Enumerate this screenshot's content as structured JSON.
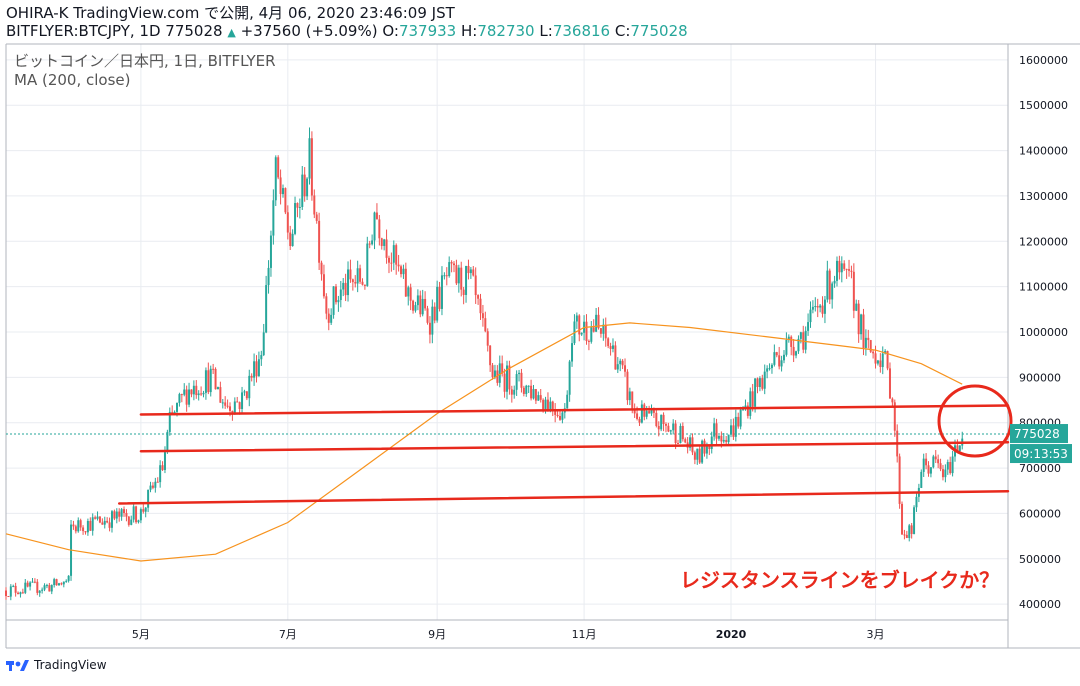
{
  "header": {
    "line1": "OHIRA-K TradingView.com で公開, 4月 06, 2020 23:46:09 JST",
    "symbol": "BITFLYER:BTCJPY, 1D 775028",
    "change_arrow": "▲",
    "change": "+37560 (+5.09%)",
    "o_label": "O:",
    "o_value": "737933",
    "h_label": "H:",
    "h_value": "782730",
    "l_label": "L:",
    "l_value": "736816",
    "c_label": "C:",
    "c_value": "775028"
  },
  "legend": {
    "title": "ビットコイン／日本円, 1日, BITFLYER",
    "indicator": "MA (200, close)"
  },
  "price_badge": "775028",
  "countdown_badge": "09:13:53",
  "annotation": "レジスタンスラインをブレイクか？",
  "footer": {
    "brand": "TradingView"
  },
  "colors": {
    "up": "#26a69a",
    "down": "#ef5350",
    "ma": "#f7931e",
    "trendline": "#e8291c",
    "grid": "#e9ecf1"
  },
  "chart_data": {
    "type": "candlestick",
    "title": "ビットコイン／日本円, 1日, BITFLYER",
    "y_ticks": [
      400000,
      500000,
      600000,
      700000,
      800000,
      900000,
      1000000,
      1100000,
      1200000,
      1300000,
      1400000,
      1500000,
      1600000
    ],
    "ylim": [
      365000,
      1635000
    ],
    "x_ticks": [
      "5月",
      "7月",
      "9月",
      "11月",
      "2020",
      "3月"
    ],
    "x_tick_dates": [
      "2019-05-01",
      "2019-07-01",
      "2019-09-01",
      "2019-11-01",
      "2020-01-01",
      "2020-03-01"
    ],
    "xlim": [
      "2019-03-06",
      "2020-04-25"
    ],
    "close_path": [
      [
        "2019-03-06",
        430000
      ],
      [
        "2019-03-25",
        440000
      ],
      [
        "2019-04-01",
        450000
      ],
      [
        "2019-04-02",
        570000
      ],
      [
        "2019-04-20",
        590000
      ],
      [
        "2019-05-01",
        600000
      ],
      [
        "2019-05-10",
        700000
      ],
      [
        "2019-05-13",
        800000
      ],
      [
        "2019-05-20",
        870000
      ],
      [
        "2019-05-30",
        900000
      ],
      [
        "2019-06-05",
        840000
      ],
      [
        "2019-06-12",
        850000
      ],
      [
        "2019-06-20",
        960000
      ],
      [
        "2019-06-26",
        1350000
      ],
      [
        "2019-07-02",
        1200000
      ],
      [
        "2019-07-10",
        1380000
      ],
      [
        "2019-07-17",
        1050000
      ],
      [
        "2019-07-25",
        1100000
      ],
      [
        "2019-08-02",
        1120000
      ],
      [
        "2019-08-06",
        1270000
      ],
      [
        "2019-08-15",
        1140000
      ],
      [
        "2019-08-20",
        1080000
      ],
      [
        "2019-08-29",
        1030000
      ],
      [
        "2019-09-05",
        1120000
      ],
      [
        "2019-09-15",
        1110000
      ],
      [
        "2019-09-24",
        910000
      ],
      [
        "2019-10-08",
        880000
      ],
      [
        "2019-10-24",
        820000
      ],
      [
        "2019-10-27",
        1010000
      ],
      [
        "2019-11-06",
        1010000
      ],
      [
        "2019-11-14",
        950000
      ],
      [
        "2019-11-22",
        820000
      ],
      [
        "2019-12-01",
        800000
      ],
      [
        "2019-12-10",
        780000
      ],
      [
        "2019-12-18",
        720000
      ],
      [
        "2019-12-25",
        780000
      ],
      [
        "2020-01-01",
        780000
      ],
      [
        "2020-01-10",
        860000
      ],
      [
        "2020-01-20",
        950000
      ],
      [
        "2020-02-01",
        1000000
      ],
      [
        "2020-02-13",
        1130000
      ],
      [
        "2020-02-20",
        1100000
      ],
      [
        "2020-02-26",
        960000
      ],
      [
        "2020-03-04",
        950000
      ],
      [
        "2020-03-08",
        860000
      ],
      [
        "2020-03-12",
        560000
      ],
      [
        "2020-03-16",
        560000
      ],
      [
        "2020-03-20",
        700000
      ],
      [
        "2020-03-26",
        710000
      ],
      [
        "2020-03-30",
        680000
      ],
      [
        "2020-04-03",
        740000
      ],
      [
        "2020-04-06",
        775028
      ]
    ],
    "ma_200": [
      [
        "2019-03-06",
        555000
      ],
      [
        "2019-04-01",
        520000
      ],
      [
        "2019-05-01",
        495000
      ],
      [
        "2019-06-01",
        510000
      ],
      [
        "2019-07-01",
        580000
      ],
      [
        "2019-08-01",
        700000
      ],
      [
        "2019-09-01",
        820000
      ],
      [
        "2019-10-01",
        920000
      ],
      [
        "2019-11-01",
        1010000
      ],
      [
        "2019-11-20",
        1020000
      ],
      [
        "2019-12-15",
        1010000
      ],
      [
        "2020-01-15",
        990000
      ],
      [
        "2020-02-15",
        970000
      ],
      [
        "2020-03-01",
        960000
      ],
      [
        "2020-03-20",
        930000
      ],
      [
        "2020-04-06",
        885000
      ]
    ],
    "trendlines": [
      {
        "start": [
          "2019-05-01",
          818000
        ],
        "end": [
          "2020-04-25",
          838000
        ]
      },
      {
        "start": [
          "2019-05-01",
          737000
        ],
        "end": [
          "2020-04-25",
          757000
        ]
      },
      {
        "start": [
          "2019-04-22",
          622000
        ],
        "end": [
          "2020-04-25",
          649000
        ]
      }
    ],
    "last_price": 775028
  }
}
